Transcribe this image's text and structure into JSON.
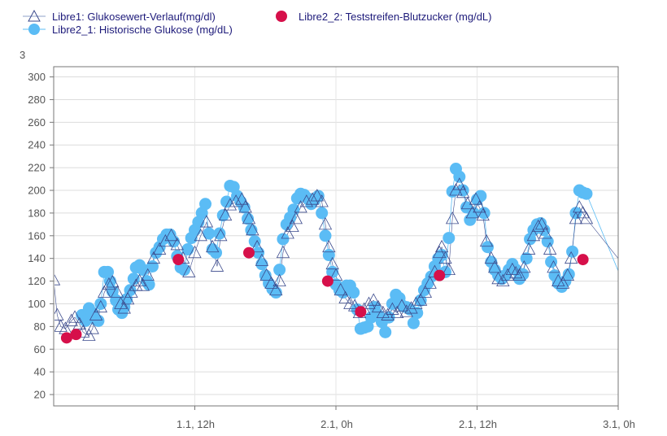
{
  "chart_data": {
    "type": "scatter",
    "title": "",
    "unit_label": "3",
    "xlabel": "",
    "ylabel": "",
    "x_unit": "hours from 1.1, 0h",
    "xlim": [
      0,
      48
    ],
    "ylim": [
      10,
      309
    ],
    "grid": true,
    "legend_position": "top-left",
    "x_ticks": [
      {
        "value": 12,
        "label": "1.1, 12h"
      },
      {
        "value": 24,
        "label": "2.1, 0h"
      },
      {
        "value": 36,
        "label": "2.1, 12h"
      },
      {
        "value": 48,
        "label": "3.1, 0h"
      }
    ],
    "y_ticks": [
      20,
      40,
      60,
      80,
      100,
      120,
      140,
      160,
      180,
      200,
      220,
      240,
      260,
      280,
      300
    ],
    "series": [
      {
        "name": "Libre1: Glukosewert-Verlauf(mg/dl)",
        "marker": "triangle-open",
        "color": "#3b4a8c",
        "points": [
          [
            0,
            121
          ],
          [
            0.3,
            90
          ],
          [
            0.6,
            80
          ],
          [
            1.0,
            78
          ],
          [
            1.5,
            85
          ],
          [
            1.8,
            88
          ],
          [
            2.2,
            82
          ],
          [
            2.5,
            75
          ],
          [
            3.0,
            72
          ],
          [
            3.3,
            78
          ],
          [
            3.6,
            90
          ],
          [
            4.0,
            97
          ],
          [
            4.3,
            110
          ],
          [
            4.7,
            117
          ],
          [
            5.0,
            119
          ],
          [
            5.4,
            110
          ],
          [
            5.7,
            100
          ],
          [
            6.0,
            96
          ],
          [
            6.3,
            104
          ],
          [
            6.6,
            110
          ],
          [
            7.0,
            116
          ],
          [
            7.3,
            120
          ],
          [
            7.6,
            116
          ],
          [
            8.0,
            125
          ],
          [
            8.5,
            140
          ],
          [
            9.0,
            148
          ],
          [
            9.5,
            155
          ],
          [
            10.0,
            160
          ],
          [
            10.5,
            152
          ],
          [
            11.0,
            140
          ],
          [
            11.5,
            128
          ],
          [
            12.0,
            145
          ],
          [
            12.5,
            160
          ],
          [
            13.0,
            172
          ],
          [
            13.5,
            150
          ],
          [
            13.9,
            133
          ],
          [
            14.2,
            160
          ],
          [
            14.6,
            178
          ],
          [
            15.0,
            187
          ],
          [
            15.5,
            190
          ],
          [
            16.0,
            192
          ],
          [
            16.3,
            185
          ],
          [
            16.6,
            175
          ],
          [
            16.9,
            165
          ],
          [
            17.3,
            150
          ],
          [
            17.7,
            138
          ],
          [
            18.1,
            125
          ],
          [
            18.5,
            118
          ],
          [
            18.9,
            112
          ],
          [
            19.2,
            120
          ],
          [
            19.5,
            145
          ],
          [
            19.9,
            162
          ],
          [
            20.3,
            168
          ],
          [
            20.6,
            175
          ],
          [
            21.0,
            185
          ],
          [
            21.5,
            190
          ],
          [
            22.0,
            192
          ],
          [
            22.4,
            195
          ],
          [
            22.8,
            190
          ],
          [
            23.1,
            170
          ],
          [
            23.4,
            150
          ],
          [
            23.7,
            135
          ],
          [
            24.0,
            125
          ],
          [
            24.4,
            112
          ],
          [
            24.8,
            105
          ],
          [
            25.2,
            100
          ],
          [
            25.6,
            98
          ],
          [
            26.0,
            92
          ],
          [
            26.4,
            95
          ],
          [
            26.8,
            100
          ],
          [
            27.2,
            103
          ],
          [
            27.6,
            97
          ],
          [
            28.0,
            92
          ],
          [
            28.4,
            90
          ],
          [
            28.8,
            95
          ],
          [
            29.2,
            92
          ],
          [
            29.6,
            98
          ],
          [
            30.0,
            93
          ],
          [
            30.4,
            96
          ],
          [
            30.8,
            100
          ],
          [
            31.2,
            103
          ],
          [
            31.6,
            110
          ],
          [
            32.0,
            118
          ],
          [
            32.4,
            128
          ],
          [
            32.8,
            145
          ],
          [
            33.0,
            150
          ],
          [
            33.3,
            140
          ],
          [
            33.6,
            130
          ],
          [
            33.9,
            175
          ],
          [
            34.2,
            200
          ],
          [
            34.5,
            205
          ],
          [
            34.8,
            198
          ],
          [
            35.2,
            188
          ],
          [
            35.6,
            180
          ],
          [
            35.9,
            192
          ],
          [
            36.2,
            185
          ],
          [
            36.5,
            178
          ],
          [
            36.8,
            155
          ],
          [
            37.2,
            140
          ],
          [
            37.5,
            132
          ],
          [
            37.8,
            122
          ],
          [
            38.2,
            120
          ],
          [
            38.6,
            125
          ],
          [
            39.0,
            130
          ],
          [
            39.3,
            127
          ],
          [
            39.6,
            125
          ],
          [
            40.0,
            132
          ],
          [
            40.4,
            148
          ],
          [
            40.8,
            160
          ],
          [
            41.2,
            168
          ],
          [
            41.5,
            170
          ],
          [
            41.8,
            162
          ],
          [
            42.2,
            148
          ],
          [
            42.5,
            132
          ],
          [
            42.9,
            120
          ],
          [
            43.3,
            118
          ],
          [
            43.7,
            125
          ],
          [
            44.0,
            140
          ],
          [
            44.4,
            175
          ],
          [
            44.7,
            185
          ],
          [
            45.0,
            180
          ],
          [
            45.3,
            175
          ],
          [
            48.0,
            140
          ]
        ]
      },
      {
        "name": "Libre2_1: Historische Glukose (mg/dL)",
        "marker": "circle",
        "color": "#5bbcf5",
        "points": [
          [
            2.4,
            90
          ],
          [
            2.7,
            85
          ],
          [
            3.0,
            96
          ],
          [
            3.3,
            92
          ],
          [
            3.6,
            86
          ],
          [
            3.8,
            85
          ],
          [
            4.0,
            100
          ],
          [
            4.3,
            128
          ],
          [
            4.6,
            128
          ],
          [
            4.8,
            120
          ],
          [
            5.0,
            111
          ],
          [
            5.3,
            103
          ],
          [
            5.5,
            95
          ],
          [
            5.8,
            92
          ],
          [
            6.0,
            97
          ],
          [
            6.2,
            104
          ],
          [
            6.5,
            112
          ],
          [
            6.8,
            122
          ],
          [
            7.0,
            132
          ],
          [
            7.3,
            134
          ],
          [
            7.6,
            130
          ],
          [
            7.9,
            120
          ],
          [
            8.1,
            117
          ],
          [
            8.4,
            133
          ],
          [
            8.7,
            145
          ],
          [
            9.0,
            150
          ],
          [
            9.3,
            157
          ],
          [
            9.6,
            161
          ],
          [
            9.9,
            161
          ],
          [
            10.2,
            155
          ],
          [
            10.5,
            142
          ],
          [
            10.8,
            132
          ],
          [
            11.1,
            130
          ],
          [
            11.4,
            148
          ],
          [
            11.7,
            158
          ],
          [
            12.0,
            165
          ],
          [
            12.3,
            172
          ],
          [
            12.6,
            180
          ],
          [
            12.9,
            188
          ],
          [
            13.2,
            162
          ],
          [
            13.5,
            148
          ],
          [
            13.8,
            145
          ],
          [
            14.1,
            162
          ],
          [
            14.4,
            178
          ],
          [
            14.7,
            190
          ],
          [
            15.0,
            204
          ],
          [
            15.3,
            203
          ],
          [
            15.6,
            195
          ],
          [
            15.9,
            190
          ],
          [
            16.2,
            185
          ],
          [
            16.5,
            175
          ],
          [
            16.8,
            165
          ],
          [
            17.1,
            155
          ],
          [
            17.4,
            145
          ],
          [
            17.7,
            135
          ],
          [
            18.0,
            125
          ],
          [
            18.3,
            118
          ],
          [
            18.6,
            113
          ],
          [
            18.9,
            110
          ],
          [
            19.2,
            130
          ],
          [
            19.5,
            157
          ],
          [
            19.8,
            170
          ],
          [
            20.1,
            176
          ],
          [
            20.4,
            183
          ],
          [
            20.7,
            193
          ],
          [
            21.0,
            197
          ],
          [
            21.3,
            196
          ],
          [
            21.6,
            193
          ],
          [
            21.9,
            188
          ],
          [
            22.2,
            192
          ],
          [
            22.5,
            195
          ],
          [
            22.8,
            180
          ],
          [
            23.1,
            160
          ],
          [
            23.4,
            143
          ],
          [
            23.7,
            128
          ],
          [
            24.0,
            117
          ],
          [
            24.3,
            112
          ],
          [
            24.6,
            110
          ],
          [
            24.9,
            116
          ],
          [
            25.2,
            116
          ],
          [
            25.5,
            110
          ],
          [
            25.8,
            95
          ],
          [
            26.1,
            78
          ],
          [
            26.4,
            79
          ],
          [
            26.7,
            80
          ],
          [
            27.0,
            88
          ],
          [
            27.3,
            97
          ],
          [
            27.6,
            90
          ],
          [
            27.9,
            84
          ],
          [
            28.2,
            75
          ],
          [
            28.5,
            88
          ],
          [
            28.8,
            100
          ],
          [
            29.1,
            108
          ],
          [
            29.4,
            105
          ],
          [
            29.7,
            98
          ],
          [
            30.0,
            97
          ],
          [
            30.3,
            95
          ],
          [
            30.6,
            83
          ],
          [
            30.9,
            92
          ],
          [
            31.2,
            103
          ],
          [
            31.5,
            112
          ],
          [
            31.8,
            118
          ],
          [
            32.1,
            124
          ],
          [
            32.4,
            133
          ],
          [
            32.7,
            140
          ],
          [
            33.0,
            143
          ],
          [
            33.3,
            128
          ],
          [
            33.6,
            158
          ],
          [
            33.9,
            199
          ],
          [
            34.2,
            219
          ],
          [
            34.5,
            212
          ],
          [
            34.8,
            200
          ],
          [
            35.1,
            185
          ],
          [
            35.4,
            174
          ],
          [
            35.7,
            180
          ],
          [
            36.0,
            192
          ],
          [
            36.3,
            195
          ],
          [
            36.6,
            180
          ],
          [
            36.9,
            150
          ],
          [
            37.2,
            137
          ],
          [
            37.5,
            130
          ],
          [
            37.8,
            125
          ],
          [
            38.1,
            122
          ],
          [
            38.4,
            125
          ],
          [
            38.7,
            130
          ],
          [
            39.0,
            135
          ],
          [
            39.3,
            130
          ],
          [
            39.6,
            122
          ],
          [
            39.9,
            126
          ],
          [
            40.2,
            140
          ],
          [
            40.5,
            157
          ],
          [
            40.8,
            165
          ],
          [
            41.1,
            170
          ],
          [
            41.4,
            171
          ],
          [
            41.7,
            165
          ],
          [
            42.0,
            155
          ],
          [
            42.3,
            137
          ],
          [
            42.6,
            125
          ],
          [
            42.9,
            118
          ],
          [
            43.2,
            115
          ],
          [
            43.5,
            120
          ],
          [
            43.8,
            126
          ],
          [
            44.1,
            146
          ],
          [
            44.4,
            180
          ],
          [
            44.7,
            200
          ],
          [
            45.0,
            198
          ],
          [
            45.3,
            197
          ],
          [
            48.0,
            129
          ]
        ]
      },
      {
        "name": "Libre2_2: Teststreifen-Blutzucker (mg/dL)",
        "marker": "circle",
        "color": "#d6104a",
        "points": [
          [
            1.1,
            70
          ],
          [
            1.9,
            73
          ],
          [
            10.6,
            139
          ],
          [
            16.6,
            145
          ],
          [
            23.3,
            120
          ],
          [
            26.1,
            93
          ],
          [
            32.8,
            125
          ],
          [
            45.0,
            139
          ]
        ]
      }
    ]
  }
}
